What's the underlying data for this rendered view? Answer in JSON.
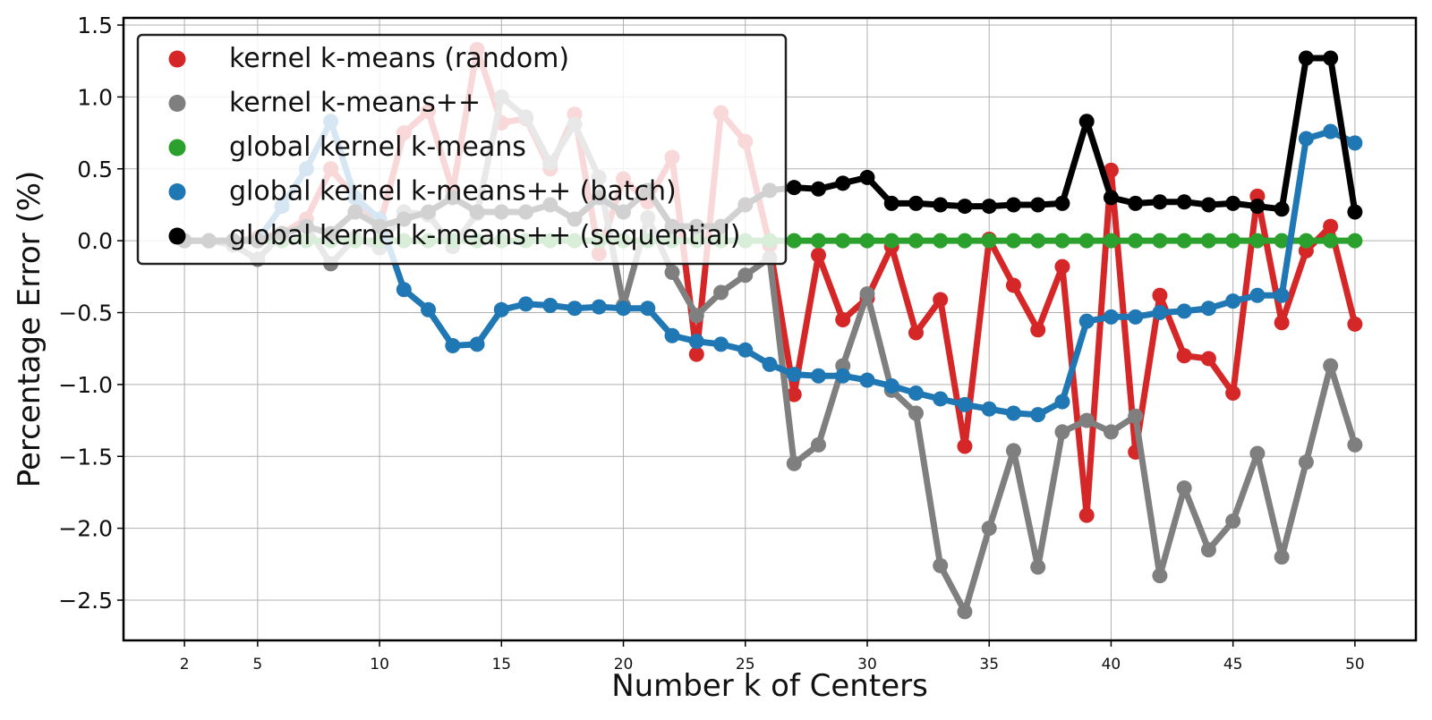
{
  "chart_data": {
    "type": "line",
    "title": "",
    "xlabel": "Number k of Centers",
    "ylabel": "Percentage Error (%)",
    "xlim": [
      -0.5,
      52.5
    ],
    "ylim": [
      -2.78,
      1.55
    ],
    "xticks": [
      2,
      5,
      10,
      15,
      20,
      25,
      30,
      35,
      40,
      45,
      50
    ],
    "yticks": [
      1.5,
      1.0,
      0.5,
      0.0,
      -0.5,
      -1.0,
      -1.5,
      -2.0,
      -2.5
    ],
    "ytick_labels": [
      "1.5",
      "1.0",
      "0.5",
      "0.0",
      "−0.5",
      "−1.0",
      "−1.5",
      "−2.0",
      "−2.5"
    ],
    "grid": true,
    "legend_position": "top-left",
    "x": [
      2,
      3,
      4,
      5,
      6,
      7,
      8,
      9,
      10,
      11,
      12,
      13,
      14,
      15,
      16,
      17,
      18,
      19,
      20,
      21,
      22,
      23,
      24,
      25,
      26,
      27,
      28,
      29,
      30,
      31,
      32,
      33,
      34,
      35,
      36,
      37,
      38,
      39,
      40,
      41,
      42,
      43,
      44,
      45,
      46,
      47,
      48,
      49,
      50
    ],
    "series": [
      {
        "name": "kernel k-means (random)",
        "color": "#d62728",
        "values": [
          0.0,
          0.0,
          0.0,
          0.02,
          0.05,
          0.15,
          0.5,
          0.3,
          0.1,
          0.75,
          0.9,
          0.35,
          1.33,
          0.82,
          0.85,
          0.5,
          0.88,
          -0.09,
          0.43,
          0.27,
          0.58,
          -0.79,
          0.89,
          0.69,
          -0.03,
          -1.07,
          -0.1,
          -0.55,
          -0.4,
          -0.04,
          -0.64,
          -0.41,
          -1.43,
          0.01,
          -0.31,
          -0.62,
          -0.18,
          -1.91,
          0.49,
          -1.47,
          -0.38,
          -0.8,
          -0.82,
          -1.06,
          0.31,
          -0.57,
          -0.07,
          0.1,
          -0.58
        ]
      },
      {
        "name": "kernel k-means++",
        "color": "#7f7f7f",
        "values": [
          0.0,
          0.0,
          -0.03,
          -0.13,
          0.05,
          0.1,
          -0.16,
          0.02,
          -0.05,
          0.2,
          0.18,
          -0.04,
          0.19,
          1.0,
          0.86,
          0.54,
          0.81,
          0.44,
          -0.45,
          0.16,
          -0.22,
          -0.52,
          -0.36,
          -0.24,
          -0.12,
          -1.55,
          -1.42,
          -0.87,
          -0.37,
          -1.04,
          -1.2,
          -2.26,
          -2.58,
          -2.0,
          -1.46,
          -2.27,
          -1.33,
          -1.25,
          -1.33,
          -1.22,
          -2.33,
          -1.72,
          -2.15,
          -1.95,
          -1.48,
          -2.2,
          -1.54,
          -0.87,
          -1.42
        ]
      },
      {
        "name": "global kernel k-means",
        "color": "#2ca02c",
        "values": [
          0,
          0,
          0,
          0,
          0,
          0,
          0,
          0,
          0,
          0,
          0,
          0,
          0,
          0,
          0,
          0,
          0,
          0,
          0,
          0,
          0,
          0,
          0,
          0,
          0,
          0,
          0,
          0,
          0,
          0,
          0,
          0,
          0,
          0,
          0,
          0,
          0,
          0,
          0,
          0,
          0,
          0,
          0,
          0,
          0,
          0,
          0,
          0,
          0
        ]
      },
      {
        "name": "global kernel k-means++ (batch)",
        "color": "#1f77b4",
        "values": [
          0.0,
          0.0,
          0.0,
          0.0,
          0.24,
          0.5,
          0.83,
          0.3,
          0.15,
          -0.34,
          -0.48,
          -0.73,
          -0.72,
          -0.48,
          -0.44,
          -0.45,
          -0.47,
          -0.46,
          -0.47,
          -0.47,
          -0.66,
          -0.7,
          -0.72,
          -0.76,
          -0.86,
          -0.93,
          -0.94,
          -0.94,
          -0.97,
          -1.01,
          -1.06,
          -1.1,
          -1.14,
          -1.17,
          -1.2,
          -1.21,
          -1.12,
          -0.56,
          -0.53,
          -0.53,
          -0.5,
          -0.49,
          -0.47,
          -0.42,
          -0.38,
          -0.38,
          0.71,
          0.76,
          0.68
        ]
      },
      {
        "name": "global kernel k-means++ (sequential)",
        "color": "#000000",
        "values": [
          0.0,
          0.0,
          0.0,
          0.0,
          0.05,
          0.1,
          0.05,
          0.2,
          0.1,
          0.15,
          0.2,
          0.3,
          0.2,
          0.2,
          0.2,
          0.25,
          0.15,
          0.3,
          0.2,
          0.35,
          0.1,
          0.1,
          0.1,
          0.25,
          0.35,
          0.37,
          0.36,
          0.4,
          0.44,
          0.26,
          0.26,
          0.25,
          0.24,
          0.24,
          0.25,
          0.25,
          0.26,
          0.83,
          0.3,
          0.26,
          0.27,
          0.27,
          0.25,
          0.26,
          0.24,
          0.22,
          1.27,
          1.27,
          0.2
        ]
      }
    ]
  }
}
